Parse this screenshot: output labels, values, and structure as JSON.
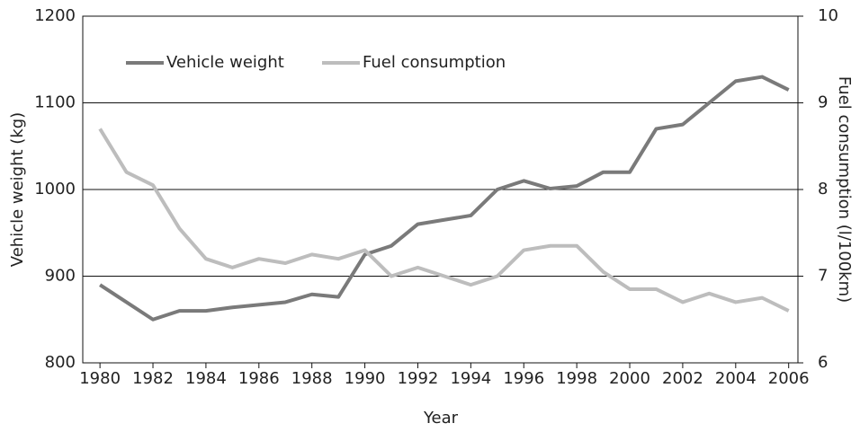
{
  "chart_data": {
    "type": "line",
    "x_label": "Year",
    "y_label": "Vehicle weight (kg)",
    "y2_label": "Fuel consumption (l/100km)",
    "x": [
      1980,
      1981,
      1982,
      1983,
      1984,
      1985,
      1986,
      1987,
      1988,
      1989,
      1990,
      1991,
      1992,
      1993,
      1994,
      1995,
      1996,
      1997,
      1998,
      1999,
      2000,
      2001,
      2002,
      2003,
      2004,
      2005,
      2006
    ],
    "series": [
      {
        "name": "Vehicle weight",
        "color": "#7a7a7a",
        "values": [
          890,
          870,
          850,
          860,
          860,
          864,
          867,
          870,
          879,
          876,
          925,
          935,
          960,
          965,
          970,
          1000,
          1010,
          1001,
          1004,
          1020,
          1020,
          1070,
          1075,
          1100,
          1125,
          1130,
          1115
        ]
      },
      {
        "name": "Fuel consumption",
        "color": "#bdbdbd",
        "axis": "y2",
        "values": [
          8.7,
          8.2,
          8.05,
          7.55,
          7.2,
          7.1,
          7.2,
          7.15,
          7.25,
          7.2,
          7.3,
          7.0,
          7.1,
          7.0,
          6.9,
          7.0,
          7.3,
          7.35,
          7.35,
          7.05,
          6.85,
          6.85,
          6.7,
          6.8,
          6.7,
          6.75,
          6.6
        ]
      }
    ],
    "xlim": [
      1979.35,
      2006.35
    ],
    "xticks": [
      1980,
      1982,
      1984,
      1986,
      1988,
      1990,
      1992,
      1994,
      1996,
      1998,
      2000,
      2002,
      2004,
      2006
    ],
    "ylim": [
      800,
      1200
    ],
    "yticks": [
      800,
      900,
      1000,
      1100,
      1200
    ],
    "y2lim": [
      6,
      10
    ],
    "y2ticks": [
      6,
      7,
      8,
      9,
      10
    ],
    "grid": true,
    "legend": "top-left"
  }
}
